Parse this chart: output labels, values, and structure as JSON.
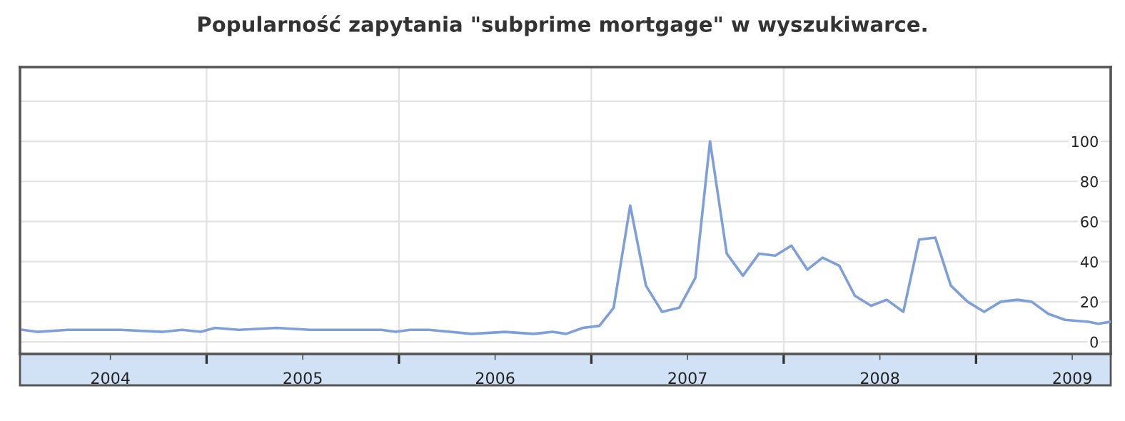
{
  "chart_data": {
    "type": "line",
    "title": "Popularność zapytania \"subprime mortgage\" w wyszukiwarce.",
    "x": [
      2004.044,
      2004.119,
      2004.279,
      2004.551,
      2004.773,
      2004.872,
      2004.97,
      2005.044,
      2005.168,
      2005.365,
      2005.538,
      2005.909,
      2005.983,
      2006.057,
      2006.156,
      2006.378,
      2006.551,
      2006.699,
      2006.798,
      2006.869,
      2006.956,
      2007.042,
      2007.116,
      2007.202,
      2007.284,
      2007.368,
      2007.457,
      2007.541,
      2007.617,
      2007.704,
      2007.788,
      2007.872,
      2007.956,
      2008.04,
      2008.123,
      2008.202,
      2008.289,
      2008.37,
      2008.454,
      2008.536,
      2008.622,
      2008.704,
      2008.788,
      2008.869,
      2008.956,
      2009.042,
      2009.128,
      2009.215,
      2009.289,
      2009.375,
      2009.462,
      2009.585,
      2009.635,
      2009.696
    ],
    "series": [
      {
        "color": "#7f9fd8",
        "values": [
          6,
          5,
          6,
          6,
          5,
          6,
          5,
          7,
          6,
          7,
          6,
          6,
          5,
          6,
          6,
          4,
          5,
          4,
          5,
          4,
          7,
          8,
          17,
          68,
          28,
          15,
          17,
          32,
          100,
          44,
          33,
          44,
          43,
          48,
          36,
          42,
          38,
          23,
          18,
          21,
          15,
          51,
          52,
          28,
          20,
          15,
          20,
          21,
          20,
          14,
          11,
          10,
          9,
          10
        ]
      }
    ],
    "xlim": [
      2004.03,
      2009.7
    ],
    "xticks": [
      {
        "value": 2004.5,
        "label": "2004"
      },
      {
        "value": 2005,
        "label": null
      },
      {
        "value": 2005.5,
        "label": "2005"
      },
      {
        "value": 2006,
        "label": null
      },
      {
        "value": 2006.5,
        "label": "2006"
      },
      {
        "value": 2007,
        "label": null
      },
      {
        "value": 2007.5,
        "label": "2007"
      },
      {
        "value": 2008,
        "label": null
      },
      {
        "value": 2008.5,
        "label": "2008"
      },
      {
        "value": 2009,
        "label": null
      },
      {
        "value": 2009.5,
        "label": "2009"
      }
    ],
    "ylim": [
      -6,
      137
    ],
    "yticks": [
      0,
      20,
      40,
      60,
      80,
      100,
      {
        "value": 120,
        "label": null
      }
    ],
    "grid": true,
    "marker": "none",
    "line_style": "solid"
  }
}
